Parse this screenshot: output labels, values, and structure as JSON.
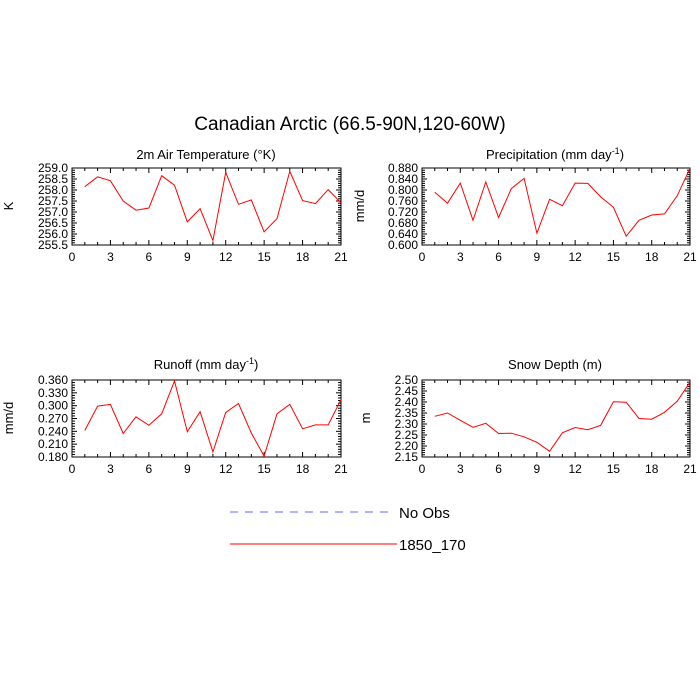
{
  "title": "Canadian Arctic (66.5-90N,120-60W)",
  "legend": [
    {
      "label": "No Obs",
      "color": "#6666ff",
      "dash": "8,7"
    },
    {
      "label": "1850_170",
      "color": "#ff0000",
      "dash": ""
    }
  ],
  "chart_data": [
    {
      "type": "line",
      "title": "2m Air Temperature",
      "title_unit_html": "(°K)",
      "ylabel": "K",
      "xlim": [
        0,
        21
      ],
      "xticks": [
        0,
        3,
        6,
        9,
        12,
        15,
        18,
        21
      ],
      "ylim": [
        255.5,
        259.0
      ],
      "yticks": [
        "255.5",
        "256.0",
        "256.5",
        "257.0",
        "257.5",
        "258.0",
        "258.5",
        "259.0"
      ],
      "grid": false,
      "series": [
        {
          "name": "1850_170",
          "color": "#ff0000",
          "x": [
            1,
            2,
            3,
            4,
            5,
            6,
            7,
            8,
            9,
            10,
            11,
            12,
            13,
            14,
            15,
            16,
            17,
            18,
            19,
            20,
            21
          ],
          "y": [
            258.15,
            258.6,
            258.42,
            257.5,
            257.08,
            257.18,
            258.65,
            258.22,
            256.55,
            257.15,
            255.7,
            258.8,
            257.35,
            257.55,
            256.1,
            256.7,
            258.85,
            257.52,
            257.38,
            258.02,
            257.42
          ]
        }
      ]
    },
    {
      "type": "line",
      "title": "Precipitation",
      "title_unit_pre": "(mm day",
      "title_unit_sup": "-1",
      "title_unit_post": ")",
      "ylabel": "mm/d",
      "xlim": [
        0,
        21
      ],
      "xticks": [
        0,
        3,
        6,
        9,
        12,
        15,
        18,
        21
      ],
      "ylim": [
        0.6,
        0.88
      ],
      "yticks": [
        "0.600",
        "0.640",
        "0.680",
        "0.720",
        "0.760",
        "0.800",
        "0.840",
        "0.880"
      ],
      "grid": false,
      "series": [
        {
          "name": "1850_170",
          "color": "#ff0000",
          "x": [
            1,
            2,
            3,
            4,
            5,
            6,
            7,
            8,
            9,
            10,
            11,
            12,
            13,
            14,
            15,
            16,
            17,
            18,
            19,
            20,
            21
          ],
          "y": [
            0.792,
            0.752,
            0.825,
            0.69,
            0.829,
            0.7,
            0.805,
            0.842,
            0.643,
            0.766,
            0.743,
            0.825,
            0.824,
            0.775,
            0.737,
            0.632,
            0.69,
            0.709,
            0.713,
            0.779,
            0.879
          ]
        }
      ]
    },
    {
      "type": "line",
      "title": "Runoff",
      "title_unit_pre": "(mm day",
      "title_unit_sup": "-1",
      "title_unit_post": ")",
      "ylabel": "mm/d",
      "xlim": [
        0,
        21
      ],
      "xticks": [
        0,
        3,
        6,
        9,
        12,
        15,
        18,
        21
      ],
      "ylim": [
        0.18,
        0.36
      ],
      "yticks": [
        "0.180",
        "0.210",
        "0.240",
        "0.270",
        "0.300",
        "0.330",
        "0.360"
      ],
      "grid": false,
      "series": [
        {
          "name": "1850_170",
          "color": "#ff0000",
          "x": [
            1,
            2,
            3,
            4,
            5,
            6,
            7,
            8,
            9,
            10,
            11,
            12,
            13,
            14,
            15,
            16,
            17,
            18,
            19,
            20,
            21
          ],
          "y": [
            0.242,
            0.299,
            0.303,
            0.235,
            0.274,
            0.254,
            0.281,
            0.358,
            0.239,
            0.286,
            0.192,
            0.284,
            0.305,
            0.236,
            0.182,
            0.281,
            0.303,
            0.246,
            0.255,
            0.255,
            0.314
          ]
        }
      ]
    },
    {
      "type": "line",
      "title": "Snow Depth (m)",
      "ylabel": "m",
      "xlim": [
        0,
        21
      ],
      "xticks": [
        0,
        3,
        6,
        9,
        12,
        15,
        18,
        21
      ],
      "ylim": [
        2.15,
        2.5
      ],
      "yticks": [
        "2.15",
        "2.20",
        "2.25",
        "2.30",
        "2.35",
        "2.40",
        "2.45",
        "2.50"
      ],
      "grid": false,
      "series": [
        {
          "name": "1850_170",
          "color": "#ff0000",
          "x": [
            1,
            2,
            3,
            4,
            5,
            6,
            7,
            8,
            9,
            10,
            11,
            12,
            13,
            14,
            15,
            16,
            17,
            18,
            19,
            20,
            21
          ],
          "y": [
            2.335,
            2.35,
            2.317,
            2.285,
            2.303,
            2.257,
            2.258,
            2.242,
            2.217,
            2.176,
            2.26,
            2.284,
            2.274,
            2.294,
            2.401,
            2.399,
            2.325,
            2.322,
            2.353,
            2.403,
            2.49
          ]
        }
      ]
    }
  ]
}
